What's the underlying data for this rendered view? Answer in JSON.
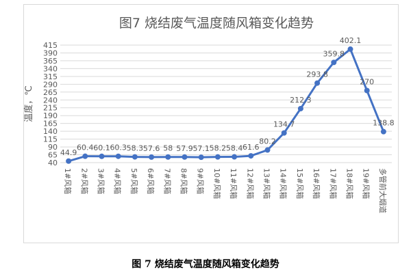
{
  "chart_data": {
    "type": "line",
    "title": "图7    烧结废气温度随风箱变化趋势",
    "ylabel": "温度，℃",
    "xlabel": "",
    "ylim": [
      40,
      415
    ],
    "yticks": [
      40,
      65,
      90,
      115,
      140,
      165,
      190,
      215,
      240,
      265,
      290,
      315,
      340,
      365,
      390,
      415
    ],
    "grid": true,
    "legend": "none",
    "categories": [
      "1#风箱",
      "2#风箱",
      "3#风箱",
      "4#风箱",
      "5#风箱",
      "6#风箱",
      "7#风箱",
      "8#风箱",
      "9#风箱",
      "10#风箱",
      "11#风箱",
      "12#风箱",
      "13#风箱",
      "14#风箱",
      "15#风箱",
      "16#风箱",
      "17#风箱",
      "18#风箱",
      "19#风箱",
      "多管前大烟道"
    ],
    "series": [
      {
        "values": [
          44.9,
          60.4,
          60.1,
          60.3,
          58.3,
          57.6,
          58,
          57.9,
          57.1,
          58.2,
          58.4,
          61.6,
          80.2,
          134.7,
          212.3,
          293.8,
          359.8,
          402.1,
          270,
          138.8
        ],
        "labels": [
          "44.9",
          "60.4",
          "60.1",
          "60.3",
          "58.3",
          "57.6",
          "58",
          "57.9",
          "57.1",
          "58.2",
          "58.4",
          "61.6",
          "80.2",
          "134.7",
          "212.3",
          "293.8",
          "359.8",
          "402.1",
          "270",
          "138.8"
        ]
      }
    ],
    "colors": {
      "line": "#4472c4",
      "grid": "#d9d9d9",
      "text": "#595959"
    }
  },
  "caption": "图 7    烧结废气温度随风箱变化趋势"
}
